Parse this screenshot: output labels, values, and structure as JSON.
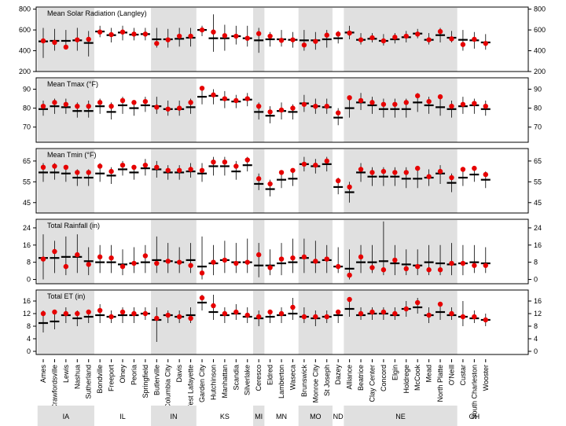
{
  "colors": {
    "band": "#e0e0e0",
    "observed": "#e60000",
    "median": "#000000",
    "range": "#000000",
    "frame": "#000000"
  },
  "sites": [
    "Ames",
    "Crawfordsville",
    "Lewis",
    "Nashua",
    "Sutherland",
    "Bondville",
    "Freeport",
    "Olney",
    "Peoria",
    "Springfield",
    "Butlerville",
    "Columbia City",
    "Davis",
    "West Lafayette",
    "Garden City",
    "Hutchinson",
    "Manhattan",
    "Scandia",
    "Silverlake",
    "Ceresco",
    "Eldred",
    "Lamberton",
    "Waseca",
    "Brunswick",
    "Monroe City",
    "St Joseph",
    "Dazey",
    "Alliance",
    "Beatrice",
    "Clay Center",
    "Concord",
    "Elgin",
    "Holdrege",
    "McCook",
    "Mead",
    "North Platte",
    "O'Neill",
    "Custar",
    "South Charleston",
    "Wooster"
  ],
  "states": [
    {
      "name": "IA",
      "first": 0,
      "last": 4,
      "shaded": true
    },
    {
      "name": "IL",
      "first": 5,
      "last": 9,
      "shaded": false
    },
    {
      "name": "IN",
      "first": 10,
      "last": 13,
      "shaded": true
    },
    {
      "name": "KS",
      "first": 14,
      "last": 18,
      "shaded": false
    },
    {
      "name": "MI",
      "first": 19,
      "last": 19,
      "shaded": true
    },
    {
      "name": "MN",
      "first": 20,
      "last": 22,
      "shaded": false
    },
    {
      "name": "MO",
      "first": 23,
      "last": 25,
      "shaded": true
    },
    {
      "name": "ND",
      "first": 26,
      "last": 26,
      "shaded": false
    },
    {
      "name": "NE",
      "first": 27,
      "last": 36,
      "shaded": true
    },
    {
      "name": "OH",
      "first": 37,
      "last": 39,
      "shaded": false
    }
  ],
  "chart_data": [
    {
      "type": "scatter",
      "title": "Mean Solar Radiation (Langley)",
      "ylim": [
        200,
        820
      ],
      "ticks": [
        200,
        400,
        600,
        800
      ],
      "median": [
        490,
        495,
        495,
        500,
        475,
        585,
        550,
        575,
        555,
        560,
        510,
        510,
        515,
        525,
        600,
        520,
        520,
        540,
        520,
        500,
        510,
        510,
        505,
        500,
        500,
        510,
        520,
        575,
        505,
        515,
        495,
        510,
        530,
        565,
        505,
        550,
        525,
        505,
        500,
        480
      ],
      "low": [
        330,
        400,
        420,
        400,
        345,
        530,
        480,
        500,
        500,
        500,
        430,
        430,
        440,
        440,
        540,
        390,
        400,
        460,
        440,
        380,
        440,
        440,
        430,
        400,
        410,
        430,
        470,
        510,
        460,
        480,
        450,
        470,
        480,
        520,
        460,
        480,
        480,
        400,
        420,
        410
      ],
      "high": [
        620,
        610,
        600,
        620,
        590,
        640,
        620,
        640,
        620,
        620,
        620,
        610,
        620,
        620,
        640,
        750,
        650,
        640,
        640,
        620,
        580,
        600,
        580,
        600,
        580,
        600,
        590,
        640,
        570,
        570,
        560,
        570,
        590,
        610,
        570,
        620,
        590,
        600,
        580,
        560
      ],
      "observed": [
        495,
        480,
        435,
        505,
        510,
        580,
        555,
        580,
        560,
        560,
        470,
        505,
        540,
        540,
        600,
        580,
        545,
        540,
        520,
        565,
        540,
        500,
        505,
        455,
        490,
        550,
        560,
        570,
        505,
        525,
        495,
        530,
        540,
        560,
        505,
        585,
        515,
        460,
        510,
        470
      ]
    },
    {
      "type": "scatter",
      "title": "Mean Tmax (°F)",
      "ylim": [
        62,
        96
      ],
      "ticks": [
        70,
        80,
        90
      ],
      "median": [
        79.5,
        81,
        80.5,
        78.5,
        78.5,
        81,
        78,
        81.5,
        80,
        81.5,
        81,
        79.5,
        79.5,
        80.5,
        86,
        86.5,
        84.5,
        83.5,
        84.5,
        78,
        76,
        78.5,
        78,
        82.5,
        81,
        80.5,
        75,
        80,
        83,
        81.5,
        79.5,
        79.5,
        79.5,
        83,
        81.5,
        80.5,
        79.5,
        81,
        81.5,
        79.5
      ],
      "low": [
        76,
        77,
        77,
        75,
        75,
        77,
        74,
        77,
        76,
        78,
        77,
        76,
        76,
        77,
        82,
        82,
        80,
        80,
        81,
        74,
        72,
        74,
        74,
        78,
        77,
        77,
        71,
        75,
        79,
        77,
        75,
        75,
        75,
        78,
        77,
        76,
        75,
        77,
        77,
        76
      ],
      "high": [
        84,
        85,
        85,
        83,
        84,
        85,
        83,
        86,
        84,
        86,
        86,
        84,
        84,
        85,
        90,
        90,
        89,
        87,
        88,
        83,
        81,
        83,
        82,
        87,
        85,
        85,
        80,
        86,
        88,
        86,
        85,
        85,
        85,
        88,
        86,
        86,
        84,
        86,
        85,
        84
      ],
      "observed": [
        81,
        83,
        82,
        81,
        81,
        83,
        81,
        84,
        83,
        83.5,
        80.5,
        79.5,
        80,
        83,
        90.5,
        87,
        85,
        84,
        85,
        81,
        78,
        79,
        80,
        82,
        81,
        81,
        77.5,
        85.5,
        84,
        83,
        82,
        82,
        83,
        86.5,
        83.5,
        86,
        81,
        82,
        82.5,
        81
      ]
    },
    {
      "type": "scatter",
      "title": "Mean Tmin (°F)",
      "ylim": [
        40,
        71
      ],
      "ticks": [
        45,
        55,
        65
      ],
      "median": [
        59.5,
        59.5,
        59,
        57,
        57,
        59,
        58,
        61,
        59.5,
        61.5,
        61,
        59.5,
        59.5,
        60,
        59,
        62.5,
        62.5,
        60,
        63,
        54,
        51.5,
        56,
        56.5,
        63.5,
        62.5,
        63.5,
        52.5,
        50,
        59.5,
        57.5,
        57.5,
        57.5,
        56.5,
        56.5,
        57,
        59,
        54.5,
        57,
        58.5,
        56
      ],
      "low": [
        55,
        56,
        55,
        53,
        53,
        55,
        54,
        58,
        56,
        58,
        57,
        56,
        56,
        57,
        55,
        58,
        58,
        56,
        60,
        51,
        48,
        52,
        53,
        60,
        59,
        60,
        49,
        45,
        55,
        53,
        53,
        53,
        52,
        52,
        53,
        54,
        50,
        53,
        55,
        52
      ],
      "high": [
        64,
        64,
        63,
        61,
        61,
        64,
        62,
        65,
        63,
        66,
        65,
        63,
        63,
        64,
        64,
        67,
        67,
        65,
        67,
        59,
        56,
        60,
        61,
        67,
        66,
        67,
        57,
        55,
        64,
        62,
        62,
        62,
        62,
        61,
        61,
        63,
        59,
        61,
        62,
        60
      ],
      "observed": [
        62,
        62.5,
        62,
        59.5,
        59.5,
        62.5,
        60,
        63,
        62,
        63,
        62,
        60.5,
        60.5,
        61,
        60.5,
        64.5,
        64.5,
        62.5,
        65.5,
        56.5,
        54,
        59.5,
        60.5,
        63.5,
        63,
        65,
        55.5,
        52.5,
        61,
        59.5,
        60,
        59.5,
        59.5,
        61.5,
        57.5,
        60,
        57,
        61,
        61.5,
        58.5
      ]
    },
    {
      "type": "scatter",
      "title": "Total Rainfall (in)",
      "ylim": [
        -2,
        28
      ],
      "ticks": [
        0,
        8,
        16,
        24
      ],
      "median": [
        10,
        10,
        10.5,
        10.5,
        8.5,
        8,
        8,
        7,
        7.5,
        8,
        9,
        8.5,
        8,
        9,
        6,
        7.5,
        9,
        8,
        8,
        6.5,
        6.5,
        7.5,
        8,
        10,
        8,
        9,
        6,
        5,
        8,
        8,
        8.5,
        7.5,
        7,
        6.5,
        8,
        7.5,
        7,
        7.5,
        8,
        7.5
      ],
      "low": [
        0,
        3,
        2,
        3,
        2,
        3,
        3,
        2,
        3,
        3,
        3,
        3,
        3,
        3,
        0,
        2,
        3,
        3,
        3,
        1,
        2,
        2,
        3,
        3,
        3,
        3,
        3,
        0,
        3,
        3,
        2,
        2,
        2,
        2,
        2,
        2,
        2,
        2,
        3,
        3
      ],
      "high": [
        21,
        18,
        20,
        21,
        15,
        16,
        16,
        14,
        15,
        16,
        20,
        17,
        15,
        17,
        20,
        16,
        18,
        17,
        19,
        17,
        14,
        17,
        19,
        19,
        18,
        16,
        15,
        14,
        16,
        16,
        27,
        16,
        14,
        14,
        16,
        16,
        17,
        16,
        16,
        15
      ],
      "observed": [
        9.5,
        13,
        6,
        11.5,
        7,
        10.5,
        10,
        6,
        7.5,
        11,
        7.5,
        8.5,
        8,
        6.5,
        3,
        8,
        9,
        7.5,
        8,
        11.5,
        5.5,
        9.5,
        10,
        10.5,
        8.5,
        9.5,
        6,
        2,
        10.5,
        5.5,
        4.5,
        9,
        5,
        6,
        4.5,
        4.5,
        7.5,
        7.5,
        6.5,
        6.5
      ]
    },
    {
      "type": "scatter",
      "title": "Total ET (in)",
      "ylim": [
        -1,
        19.5
      ],
      "ticks": [
        0,
        4,
        8,
        12,
        16
      ],
      "median": [
        9,
        9.5,
        11.5,
        10.5,
        11,
        11.5,
        11,
        11.5,
        11.5,
        12,
        10,
        11.5,
        11,
        11.5,
        15.5,
        12.5,
        11.5,
        12,
        11,
        10.5,
        11,
        11.5,
        12,
        11,
        10.5,
        11,
        11.5,
        13.5,
        11.5,
        12,
        12,
        11.5,
        13.5,
        14,
        11.5,
        12.5,
        11.5,
        11,
        10.5,
        10
      ],
      "low": [
        6,
        7,
        9,
        8,
        9,
        9,
        9,
        9,
        9,
        10,
        3,
        9,
        9,
        9,
        13,
        10,
        9,
        10,
        9,
        8,
        9,
        9,
        10,
        9,
        8,
        9,
        9,
        11,
        10,
        10,
        10,
        10,
        11,
        12,
        9,
        10,
        10,
        8,
        9,
        8
      ],
      "high": [
        13,
        13,
        14,
        13,
        13,
        15,
        13,
        14,
        14,
        14,
        14,
        13,
        13,
        14,
        18,
        18,
        14,
        15,
        14,
        13,
        13,
        14,
        17,
        14,
        13,
        13,
        13,
        16,
        14,
        14,
        14,
        14,
        16,
        17,
        14,
        15,
        14,
        16,
        13,
        12
      ],
      "observed": [
        12,
        12.5,
        12,
        12,
        12.5,
        13,
        11,
        12.5,
        12,
        12,
        10.5,
        11.5,
        11,
        10.5,
        17,
        14.5,
        12,
        12.5,
        11.5,
        11,
        12.5,
        12,
        14,
        11,
        11,
        11,
        12.5,
        16.5,
        12,
        12.5,
        12.5,
        12,
        13.5,
        15.5,
        11.5,
        15,
        12,
        11,
        11,
        10
      ]
    }
  ]
}
